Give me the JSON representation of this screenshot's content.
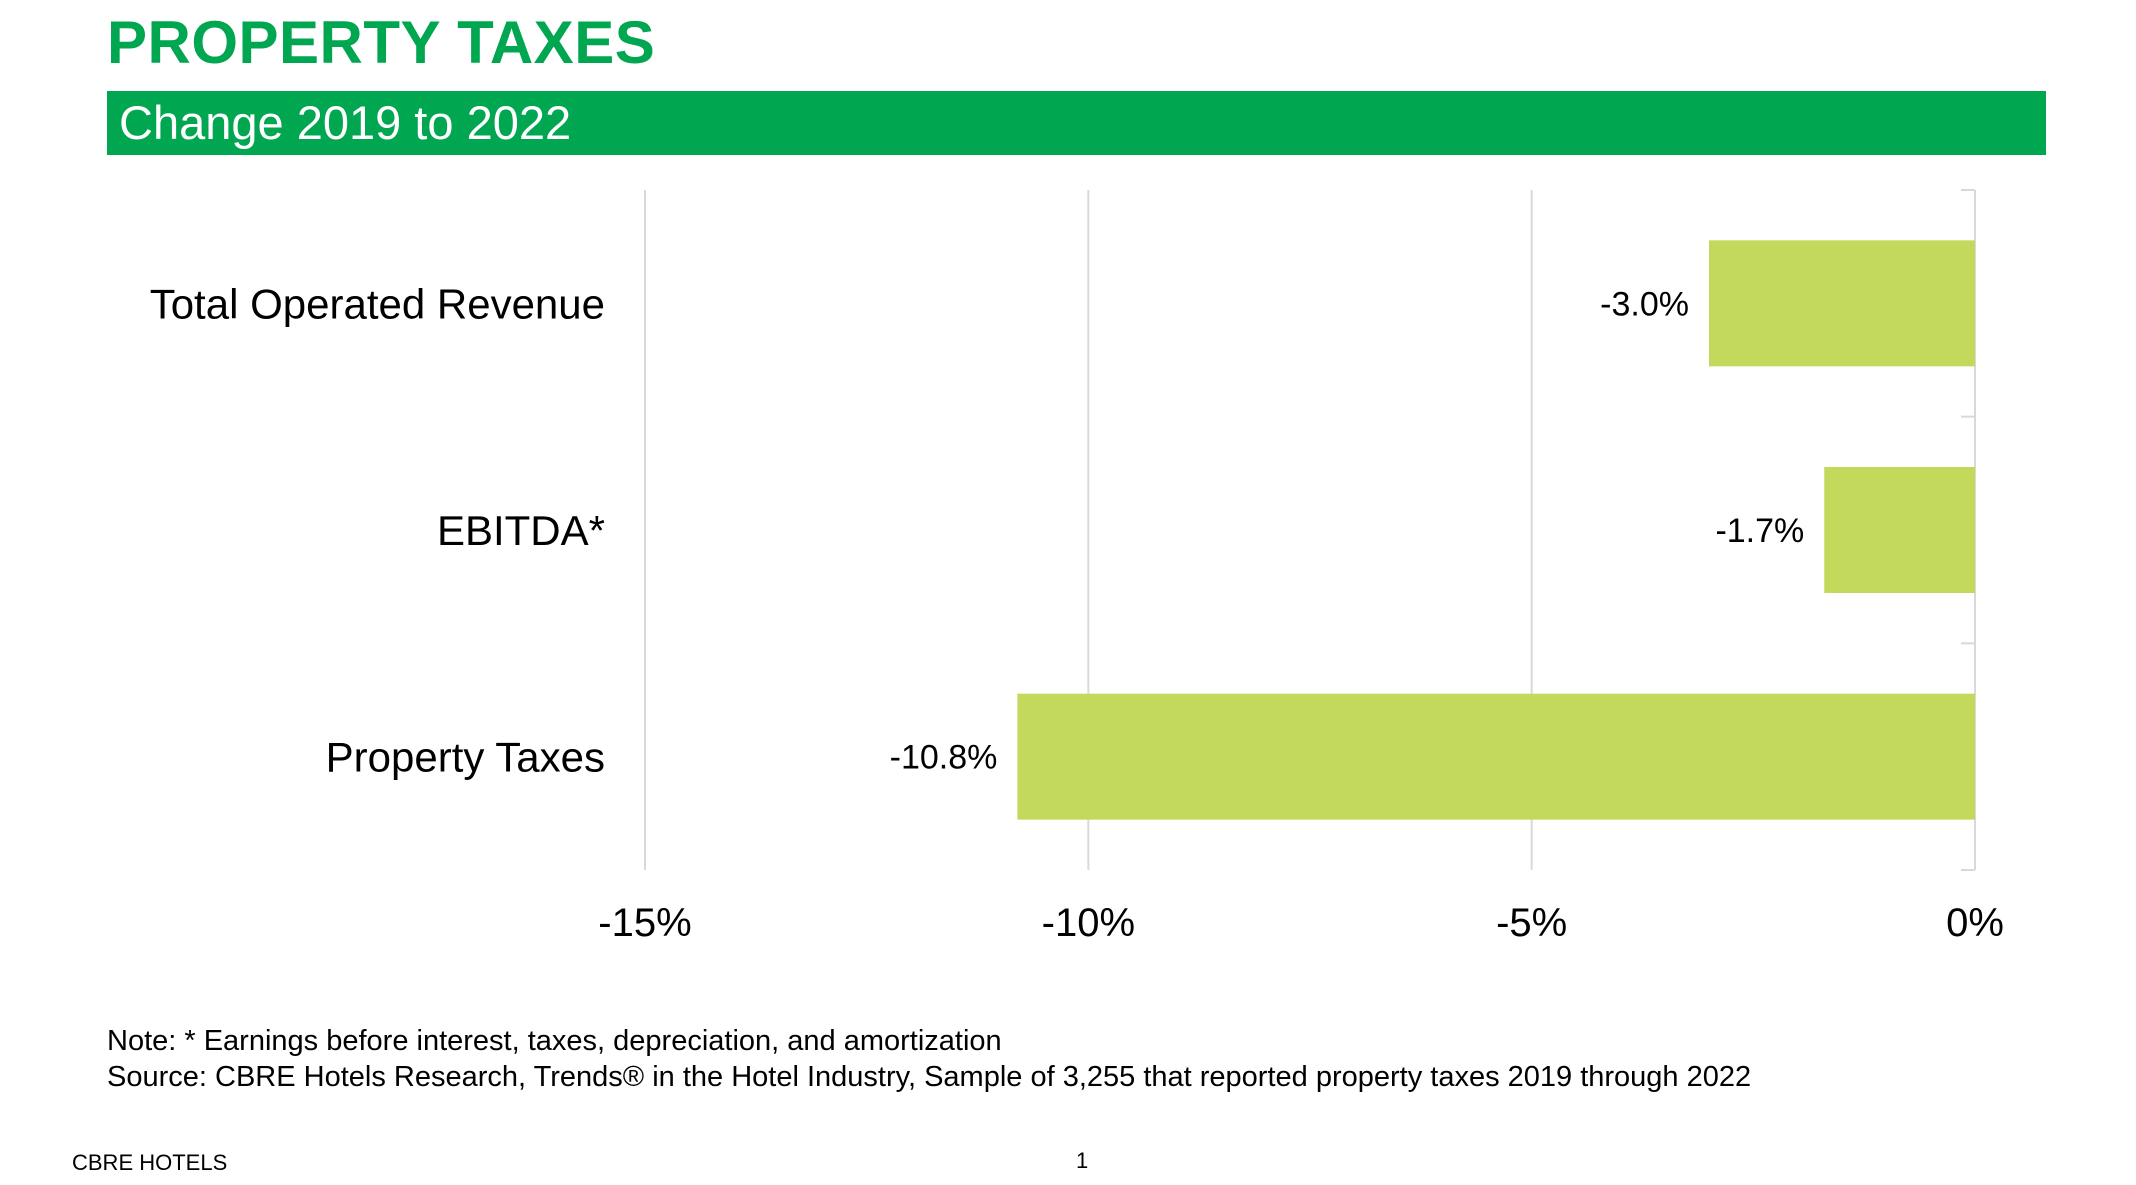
{
  "header": {
    "title": "PROPERTY TAXES",
    "subtitle": "Change 2019 to 2022"
  },
  "colors": {
    "brand_green": "#00a650",
    "bar_fill": "#c2d95b",
    "gridline": "#d9d9d9"
  },
  "chart_data": {
    "type": "bar",
    "orientation": "horizontal",
    "title": "Change 2019 to 2022",
    "categories": [
      "Total Operated Revenue",
      "EBITDA*",
      "Property Taxes"
    ],
    "series": [
      {
        "name": "Change 2019 to 2022",
        "values": [
          -3.0,
          -1.7,
          -10.8
        ],
        "data_labels": [
          "-3.0%",
          "-1.7%",
          "-10.8%"
        ]
      }
    ],
    "xlim": [
      -15,
      0
    ],
    "xticks": [
      -15,
      -10,
      -5,
      0
    ],
    "xtick_labels": [
      "-15%",
      "-10%",
      "-5%",
      "0%"
    ],
    "xlabel": "",
    "ylabel": "",
    "grid": true,
    "legend": "none"
  },
  "notes": {
    "line1": "Note: * Earnings before interest, taxes, depreciation, and amortization",
    "line2": "Source: CBRE Hotels Research, Trends® in the Hotel Industry, Sample of 3,255 that reported property taxes 2019 through 2022"
  },
  "footer": {
    "brand": "CBRE HOTELS",
    "page_number": "1"
  }
}
